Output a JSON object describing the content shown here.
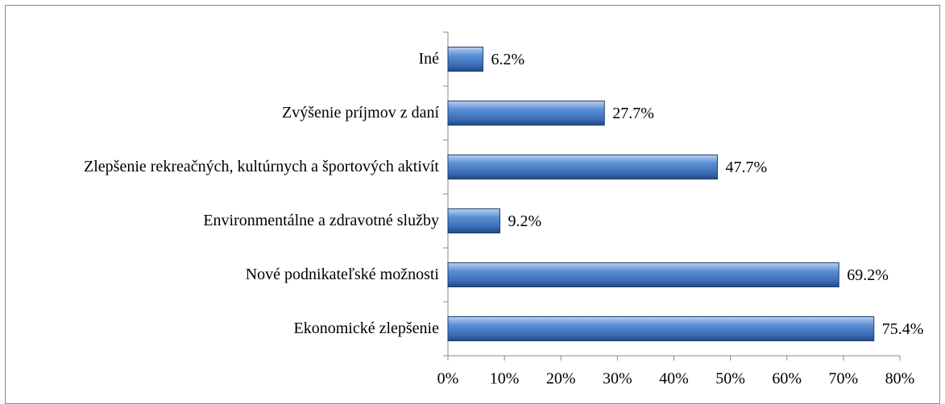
{
  "chart_data": {
    "type": "barh",
    "categories": [
      "Iné",
      "Zvýšenie príjmov z daní",
      "Zlepšenie rekreačných, kultúrnych a športových aktivít",
      "Environmentálne a zdravotné služby",
      "Nové podnikateľské možnosti",
      "Ekonomické zlepšenie"
    ],
    "values": [
      6.2,
      27.7,
      47.7,
      9.2,
      69.2,
      75.4
    ],
    "value_labels": [
      "6.2%",
      "27.7%",
      "47.7%",
      "9.2%",
      "69.2%",
      "75.4%"
    ],
    "color": "#4f81bd",
    "xlim": [
      0,
      80
    ],
    "xticks": [
      {
        "value": 0,
        "label": "0%"
      },
      {
        "value": 10,
        "label": "10%"
      },
      {
        "value": 20,
        "label": "20%"
      },
      {
        "value": 30,
        "label": "30%"
      },
      {
        "value": 40,
        "label": "40%"
      },
      {
        "value": 50,
        "label": "50%"
      },
      {
        "value": 60,
        "label": "60%"
      },
      {
        "value": 70,
        "label": "70%"
      },
      {
        "value": 80,
        "label": "80%"
      }
    ]
  }
}
